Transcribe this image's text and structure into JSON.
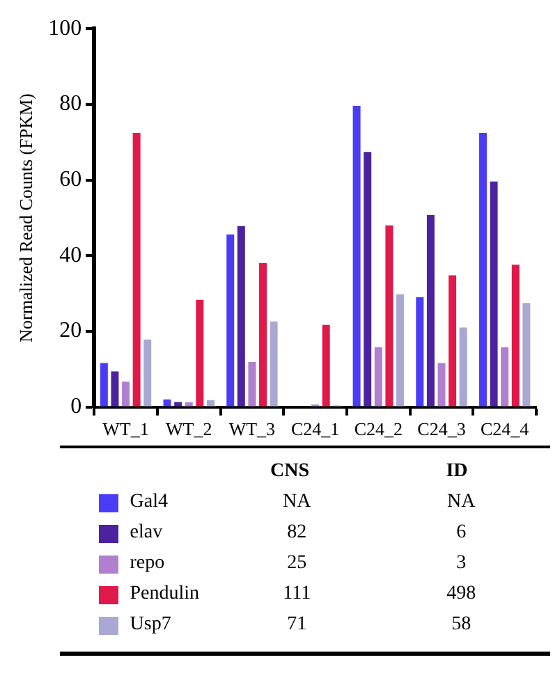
{
  "chart_data": {
    "type": "bar",
    "ylabel": "Normalized Read Counts (FPKM)",
    "categories": [
      "WT_1",
      "WT_2",
      "WT_3",
      "C24_1",
      "C24_2",
      "C24_3",
      "C24_4"
    ],
    "series": [
      {
        "name": "Gal4",
        "color": "#4a3cf5",
        "values": [
          12,
          2.4,
          46,
          null,
          80,
          29.4,
          72.8
        ]
      },
      {
        "name": "elav",
        "color": "#4b22a0",
        "values": [
          9.8,
          1.7,
          48.2,
          null,
          67.8,
          51.1,
          60
        ]
      },
      {
        "name": "repo",
        "color": "#b07fd0",
        "values": [
          7.1,
          1.6,
          12.3,
          1,
          16.2,
          12,
          16.2
        ]
      },
      {
        "name": "Pendulin",
        "color": "#e0194a",
        "values": [
          72.8,
          28.7,
          38.4,
          22.1,
          48.4,
          35.2,
          38
        ]
      },
      {
        "name": "Usp7",
        "color": "#a8a8d2",
        "values": [
          18.2,
          2.2,
          23,
          0.7,
          30.2,
          21.4,
          27.9
        ]
      }
    ],
    "ylim": [
      0,
      100
    ],
    "yticks": [
      0,
      20,
      40,
      60,
      80,
      100
    ],
    "grid": false,
    "legend": "bottom",
    "annotations": [
      "CNS",
      "ID",
      "NA",
      "NA",
      "82",
      "6",
      "25",
      "3",
      "111",
      "498",
      "71",
      "58"
    ]
  }
}
